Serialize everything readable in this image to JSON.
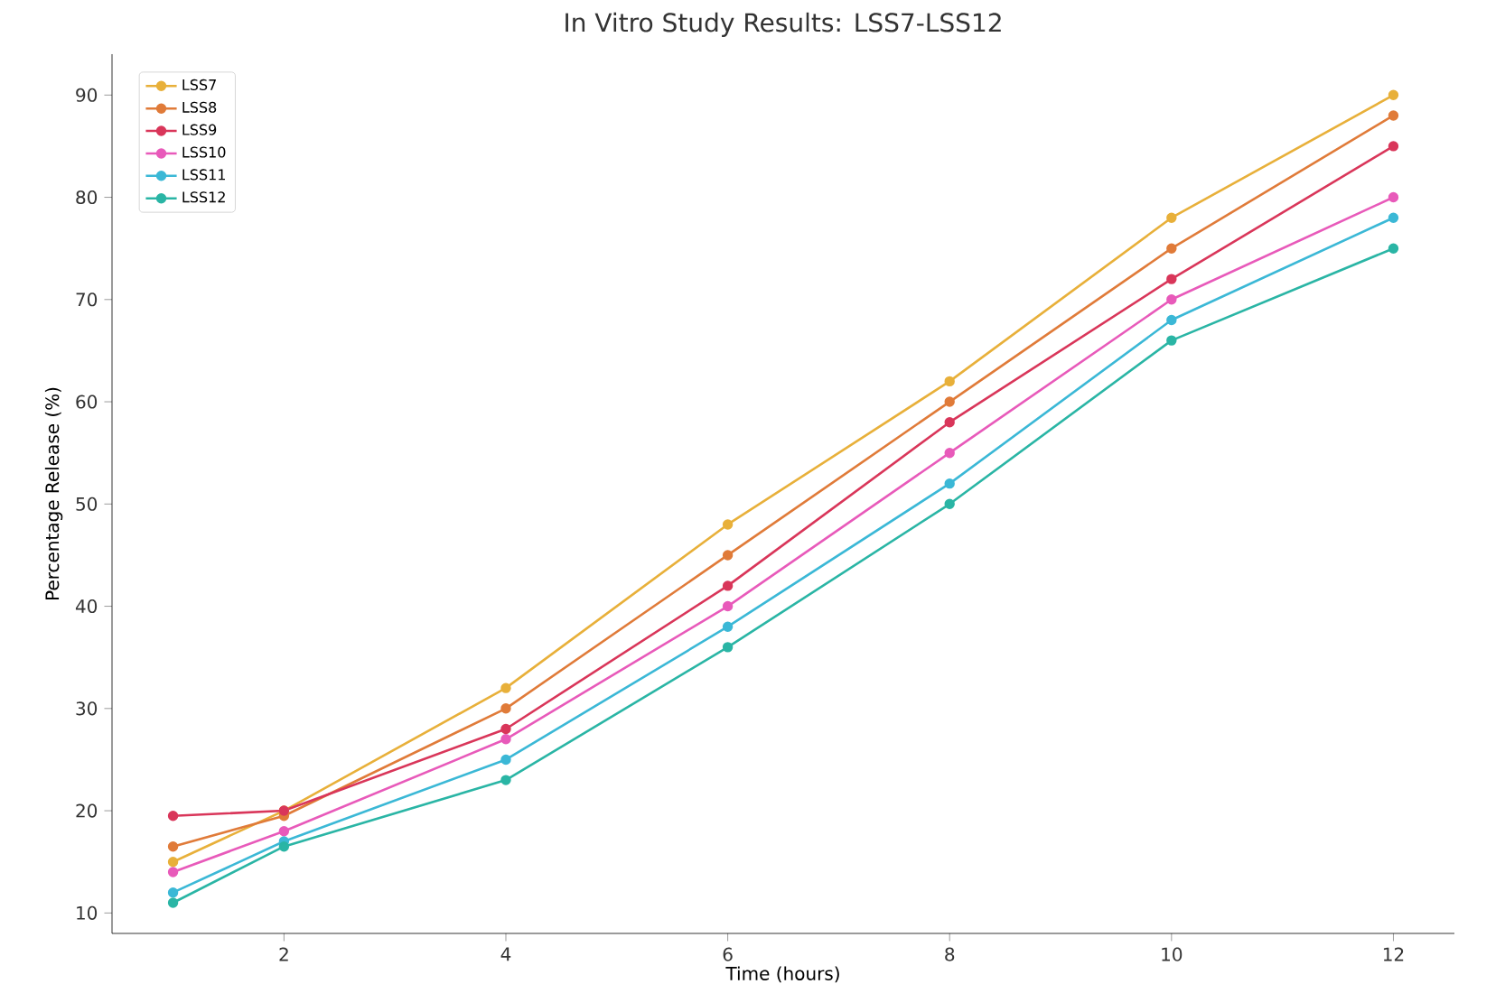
{
  "chart_data": {
    "type": "line",
    "title": "In Vitro Study Results: LSS7-LSS12",
    "xlabel": "Time (hours)",
    "ylabel": "Percentage Release (%)",
    "x": [
      1,
      2,
      4,
      6,
      8,
      10,
      12
    ],
    "xlim": [
      0.45,
      12.55
    ],
    "xticks": [
      2,
      4,
      6,
      8,
      10,
      12
    ],
    "ylim": [
      8,
      94
    ],
    "yticks": [
      10,
      20,
      30,
      40,
      50,
      60,
      70,
      80,
      90
    ],
    "marker": "circle",
    "legend": "top left",
    "series": [
      {
        "name": "LSS7",
        "color": "#e8b03a",
        "values": [
          15,
          20,
          32,
          48,
          62,
          78,
          90
        ]
      },
      {
        "name": "LSS8",
        "color": "#e07b39",
        "values": [
          16.5,
          19.5,
          30,
          45,
          60,
          75,
          88
        ]
      },
      {
        "name": "LSS9",
        "color": "#d9365a",
        "values": [
          19.5,
          20,
          28,
          42,
          58,
          72,
          85
        ]
      },
      {
        "name": "LSS10",
        "color": "#e85aba",
        "values": [
          14,
          18,
          27,
          40,
          55,
          70,
          80
        ]
      },
      {
        "name": "LSS11",
        "color": "#3bb8d6",
        "values": [
          12,
          17,
          25,
          38,
          52,
          68,
          78
        ]
      },
      {
        "name": "LSS12",
        "color": "#2ab5a5",
        "values": [
          11,
          16.5,
          23,
          36,
          50,
          66,
          75
        ]
      }
    ]
  }
}
